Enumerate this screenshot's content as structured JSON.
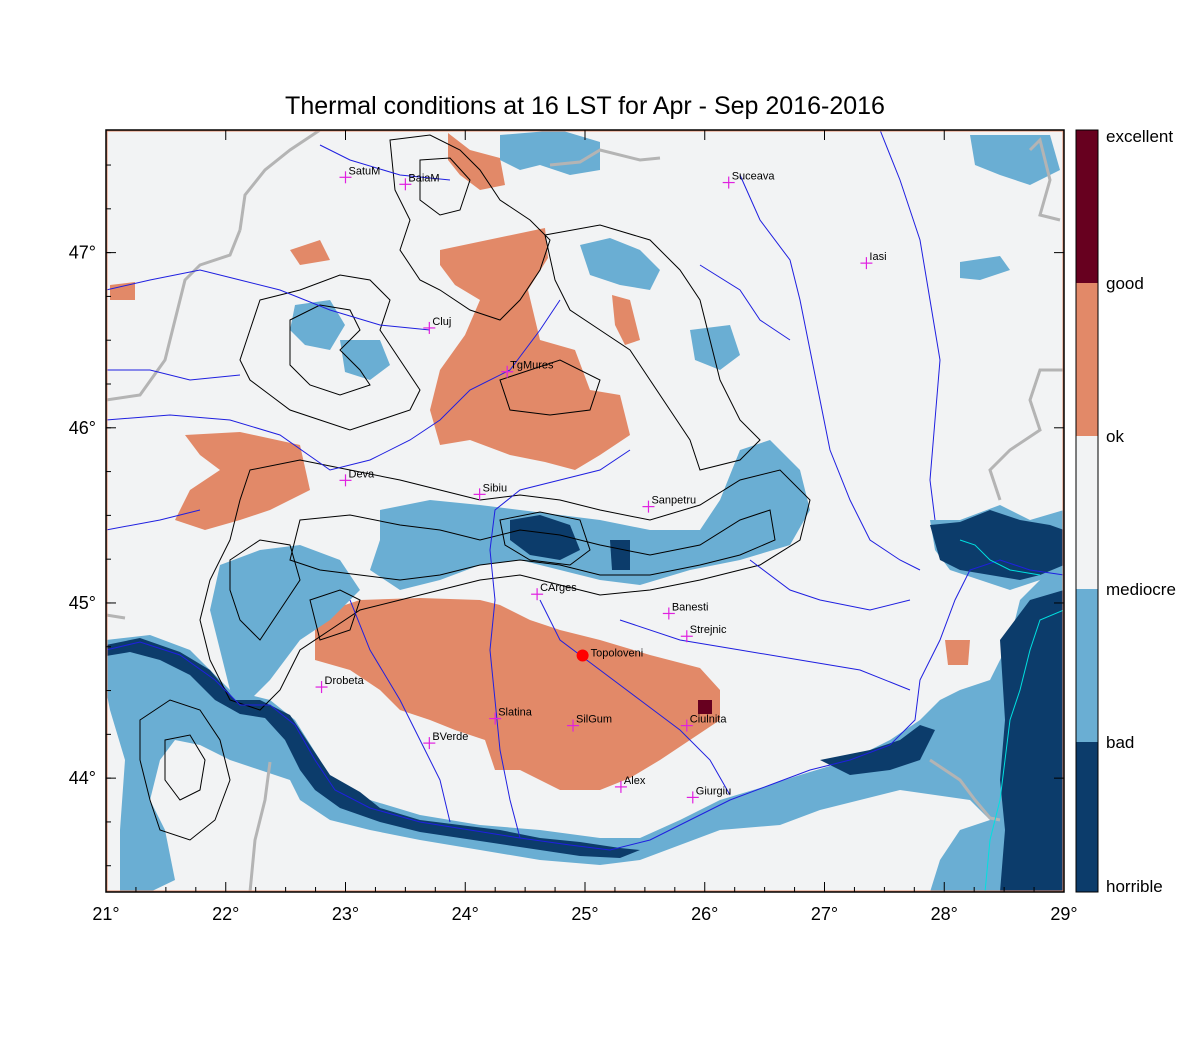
{
  "title": "Thermal conditions at 16 LST for Apr - Sep  2016-2016",
  "colors": {
    "excellent": "#67001f",
    "good": "#e28968",
    "ok": "#f2f3f4",
    "mediocre": "#6aaed3",
    "bad": "#0c3c6b",
    "river": "#1f1fe0",
    "border": "#b4b4b4",
    "contour": "#000000",
    "city_marker": "#e020e0",
    "highlight_marker": "#ff0000"
  },
  "axes": {
    "lon_range": [
      21,
      29
    ],
    "lat_range": [
      43.35,
      47.7
    ],
    "x_ticks": [
      {
        "value": 21,
        "label": "21°"
      },
      {
        "value": 22,
        "label": "22°"
      },
      {
        "value": 23,
        "label": "23°"
      },
      {
        "value": 24,
        "label": "24°"
      },
      {
        "value": 25,
        "label": "25°"
      },
      {
        "value": 26,
        "label": "26°"
      },
      {
        "value": 27,
        "label": "27°"
      },
      {
        "value": 28,
        "label": "28°"
      },
      {
        "value": 29,
        "label": "29°"
      }
    ],
    "y_ticks": [
      {
        "value": 44,
        "label": "44°"
      },
      {
        "value": 45,
        "label": "45°"
      },
      {
        "value": 46,
        "label": "46°"
      },
      {
        "value": 47,
        "label": "47°"
      }
    ]
  },
  "colorbar": {
    "classes": [
      {
        "label": "excellent",
        "color": "#67001f"
      },
      {
        "label": "good",
        "color": "#e28968"
      },
      {
        "label": "ok",
        "color": "#f2f3f4"
      },
      {
        "label": "mediocre",
        "color": "#6aaed3"
      },
      {
        "label": "bad",
        "color": "#0c3c6b"
      },
      {
        "label": "horrible",
        "color": "#0c3c6b"
      }
    ]
  },
  "cities": [
    {
      "name": "SatuM",
      "lon": 23.0,
      "lat": 47.43
    },
    {
      "name": "BaiaM",
      "lon": 23.5,
      "lat": 47.39
    },
    {
      "name": "Suceava",
      "lon": 26.2,
      "lat": 47.4
    },
    {
      "name": "Iasi",
      "lon": 27.35,
      "lat": 46.94
    },
    {
      "name": "Cluj",
      "lon": 23.7,
      "lat": 46.57
    },
    {
      "name": "TgMures",
      "lon": 24.35,
      "lat": 46.32
    },
    {
      "name": "Deva",
      "lon": 23.0,
      "lat": 45.7
    },
    {
      "name": "Sibiu",
      "lon": 24.12,
      "lat": 45.62
    },
    {
      "name": "Sanpetru",
      "lon": 25.53,
      "lat": 45.55
    },
    {
      "name": "CArges",
      "lon": 24.6,
      "lat": 45.05
    },
    {
      "name": "Banesti",
      "lon": 25.7,
      "lat": 44.94
    },
    {
      "name": "Strejnic",
      "lon": 25.85,
      "lat": 44.81
    },
    {
      "name": "Drobeta",
      "lon": 22.8,
      "lat": 44.52
    },
    {
      "name": "Slatina",
      "lon": 24.25,
      "lat": 44.34
    },
    {
      "name": "SilGum",
      "lon": 24.9,
      "lat": 44.3
    },
    {
      "name": "Ciulnita",
      "lon": 25.85,
      "lat": 44.3
    },
    {
      "name": "BVerde",
      "lon": 23.7,
      "lat": 44.2
    },
    {
      "name": "Alex",
      "lon": 25.3,
      "lat": 43.95
    },
    {
      "name": "Giurgiu",
      "lon": 25.9,
      "lat": 43.89
    }
  ],
  "highlight": {
    "name": "Topoloveni",
    "lon": 24.98,
    "lat": 44.7
  }
}
